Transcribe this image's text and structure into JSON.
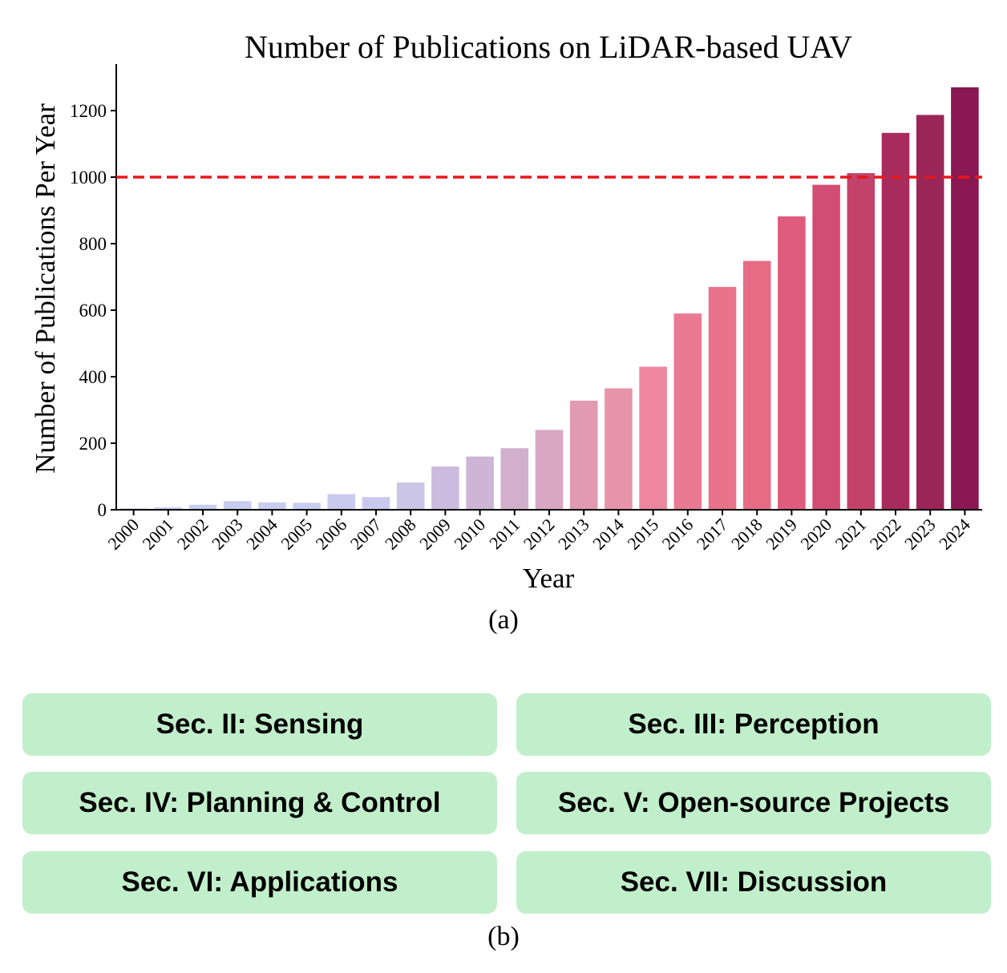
{
  "chart_data": {
    "type": "bar",
    "title": "Number of Publications on LiDAR-based UAV",
    "xlabel": "Year",
    "ylabel": "Number of Publications Per Year",
    "ylim": [
      0,
      1300
    ],
    "yticks": [
      0,
      200,
      400,
      600,
      800,
      1000,
      1200
    ],
    "categories": [
      "2000",
      "2001",
      "2002",
      "2003",
      "2004",
      "2005",
      "2006",
      "2007",
      "2008",
      "2009",
      "2010",
      "2011",
      "2012",
      "2013",
      "2014",
      "2015",
      "2016",
      "2017",
      "2018",
      "2019",
      "2020",
      "2021",
      "2022",
      "2023",
      "2024"
    ],
    "values": [
      4,
      7,
      15,
      26,
      22,
      21,
      47,
      38,
      82,
      130,
      160,
      185,
      240,
      328,
      365,
      430,
      590,
      670,
      748,
      882,
      977,
      1012,
      1133,
      1187,
      1270
    ],
    "bar_colors": [
      "#c6cff0",
      "#c6cff0",
      "#c6cff0",
      "#c8cdf0",
      "#c8cdf0",
      "#c8cdf0",
      "#c9caee",
      "#cac8ec",
      "#cbc5e6",
      "#ccbadf",
      "#cfb5d5",
      "#d2b0cd",
      "#d9a7c4",
      "#e299b2",
      "#e794aa",
      "#ec879e",
      "#ea7a91",
      "#e8738a",
      "#e66b84",
      "#df5c7c",
      "#d24d72",
      "#c3426b",
      "#a82b5e",
      "#9a2559",
      "#8b1753"
    ],
    "reference_line": {
      "value": 1000,
      "color": "#e8161b",
      "style": "dashed"
    },
    "grid": false,
    "legend": "none"
  },
  "captions": {
    "a": "(a)",
    "b": "(b)"
  },
  "sections": [
    {
      "label": "Sec. II: Sensing"
    },
    {
      "label": "Sec. III: Perception"
    },
    {
      "label": "Sec. IV: Planning & Control"
    },
    {
      "label": "Sec. V: Open-source Projects"
    },
    {
      "label": "Sec. VI: Applications"
    },
    {
      "label": "Sec. VII: Discussion"
    }
  ],
  "colors": {
    "section_box": "#c2efcb"
  }
}
